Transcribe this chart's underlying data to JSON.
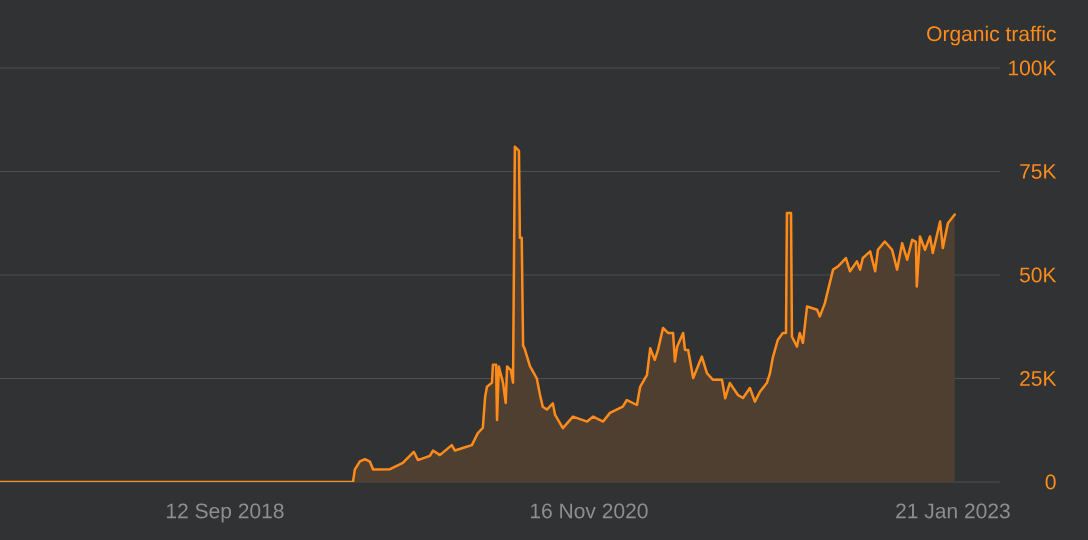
{
  "chart_data": {
    "type": "area",
    "ylabel": "Organic traffic",
    "color": "#ff8c1a",
    "grid": "y",
    "xlim": [
      "2017-05-08",
      "2023-05-04"
    ],
    "ylim": [
      0,
      100000
    ],
    "xticks": [
      {
        "value": "2018-09-12",
        "label": "12 Sep 2018"
      },
      {
        "value": "2020-11-16",
        "label": "16 Nov 2020"
      },
      {
        "value": "2023-01-21",
        "label": "21 Jan 2023"
      }
    ],
    "yticks": [
      0,
      {
        "value": 25000,
        "label": "25K"
      },
      {
        "value": 50000,
        "label": "50K"
      },
      {
        "value": 75000,
        "label": "75K"
      },
      {
        "value": 100000,
        "label": "100K"
      }
    ],
    "x": [
      "2017-05-08",
      "2019-06-19",
      "2019-06-23",
      "2019-07-04",
      "2019-07-15",
      "2019-07-26",
      "2019-08-02",
      "2019-09-08",
      "2019-10-06",
      "2019-10-30",
      "2019-11-08",
      "2019-12-04",
      "2019-12-11",
      "2019-12-26",
      "2020-01-21",
      "2020-01-28",
      "2020-02-14",
      "2020-03-05",
      "2020-03-18",
      "2020-03-29",
      "2020-04-03",
      "2020-04-07",
      "2020-04-18",
      "2020-04-20",
      "2020-04-27",
      "2020-04-29",
      "2020-05-03",
      "2020-05-12",
      "2020-05-18",
      "2020-05-21",
      "2020-05-29",
      "2020-06-03",
      "2020-06-07",
      "2020-06-16",
      "2020-06-18",
      "2020-06-22",
      "2020-06-25",
      "2020-06-29",
      "2020-07-10",
      "2020-07-25",
      "2020-08-01",
      "2020-08-07",
      "2020-08-16",
      "2020-08-29",
      "2020-09-03",
      "2020-09-20",
      "2020-10-12",
      "2020-11-12",
      "2020-11-25",
      "2020-12-17",
      "2021-01-01",
      "2021-01-29",
      "2021-02-07",
      "2021-03-01",
      "2021-03-08",
      "2021-03-23",
      "2021-03-30",
      "2021-04-09",
      "2021-04-16",
      "2021-04-27",
      "2021-05-08",
      "2021-05-19",
      "2021-05-23",
      "2021-05-28",
      "2021-06-10",
      "2021-06-14",
      "2021-06-21",
      "2021-07-02",
      "2021-07-21",
      "2021-08-01",
      "2021-08-14",
      "2021-09-03",
      "2021-09-10",
      "2021-09-20",
      "2021-10-08",
      "2021-10-19",
      "2021-11-03",
      "2021-11-14",
      "2021-11-25",
      "2021-12-10",
      "2021-12-17",
      "2021-12-23",
      "2022-01-03",
      "2022-01-14",
      "2022-01-21",
      "2022-01-23",
      "2022-02-01",
      "2022-02-03",
      "2022-02-14",
      "2022-02-20",
      "2022-02-27",
      "2022-03-08",
      "2022-03-30",
      "2022-04-05",
      "2022-04-16",
      "2022-04-23",
      "2022-05-04",
      "2022-05-15",
      "2022-06-01",
      "2022-06-10",
      "2022-06-25",
      "2022-07-02",
      "2022-07-08",
      "2022-07-24",
      "2022-08-04",
      "2022-08-10",
      "2022-08-25",
      "2022-09-10",
      "2022-09-21",
      "2022-10-02",
      "2022-10-13",
      "2022-10-24",
      "2022-11-01",
      "2022-11-03",
      "2022-11-10",
      "2022-11-21",
      "2022-12-02",
      "2022-12-08",
      "2022-12-24",
      "2022-12-30",
      "2023-01-10",
      "2023-01-25"
    ],
    "values": [
      0,
      0,
      3000,
      5000,
      5500,
      4900,
      3000,
      3100,
      4600,
      7300,
      5300,
      6300,
      7600,
      6500,
      8900,
      7600,
      8200,
      8900,
      11800,
      13100,
      20600,
      23000,
      24000,
      28300,
      28300,
      15000,
      27900,
      24000,
      19100,
      27900,
      27100,
      24000,
      81000,
      80000,
      59000,
      59000,
      33000,
      32000,
      28000,
      25000,
      21000,
      18200,
      17500,
      19000,
      16200,
      13000,
      15800,
      14600,
      15800,
      14600,
      16700,
      18200,
      19800,
      18600,
      23000,
      25900,
      32300,
      29500,
      31900,
      37200,
      36000,
      36000,
      29100,
      32700,
      36000,
      31900,
      31900,
      25100,
      30300,
      26300,
      24700,
      24700,
      20200,
      23900,
      21000,
      20300,
      22700,
      19400,
      21800,
      23900,
      26300,
      30000,
      34300,
      36000,
      36000,
      65000,
      65000,
      35100,
      32700,
      36000,
      33600,
      42400,
      41600,
      40000,
      43200,
      46400,
      51300,
      52100,
      54100,
      50900,
      53300,
      51300,
      54100,
      55700,
      50900,
      56100,
      58100,
      56100,
      51300,
      57700,
      53700,
      58500,
      58000,
      47200,
      59300,
      56100,
      59300,
      55300,
      62900,
      56500,
      62500,
      64600
    ]
  }
}
